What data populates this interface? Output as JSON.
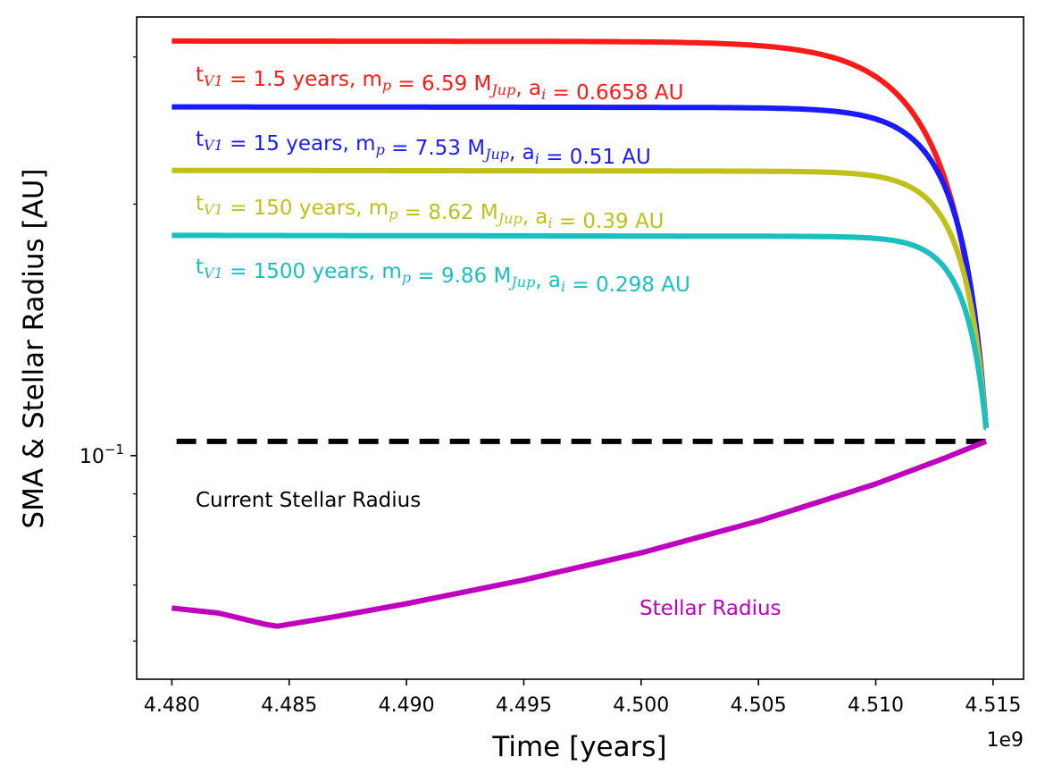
{
  "chart_data": {
    "type": "line",
    "xlabel": "Time [years]",
    "ylabel": "SMA & Stellar Radius [AU]",
    "x_offset_label": "1e9",
    "xlim": [
      4.4785,
      4.5163
    ],
    "ylim": [
      0.054,
      0.335
    ],
    "yscale": "log",
    "x_ticks": [
      4.48,
      4.485,
      4.49,
      4.495,
      4.5,
      4.505,
      4.51,
      4.515
    ],
    "x_tick_labels": [
      "4.480",
      "4.485",
      "4.490",
      "4.495",
      "4.500",
      "4.505",
      "4.510",
      "4.515"
    ],
    "y_major_tick": {
      "value": 0.1,
      "base": "10",
      "exponent": "−1"
    },
    "y_minor_ticks": [
      0.06,
      0.07,
      0.08,
      0.09,
      0.2,
      0.3
    ],
    "t_end": 4.5147,
    "series": [
      {
        "name": "tV1 = 1.5 years",
        "color": "#ff1a1a",
        "a_start": 0.3135,
        "a_end": 0.108,
        "tau": 0.0024,
        "flat": 0.0022,
        "label": {
          "t": "t",
          "tsub": "V1",
          "tval": " = 1.5 years, m",
          "msub": "p",
          "mval": " = 6.59 M",
          "jsub": "Jup",
          "aval": ", a",
          "asub": "i",
          "aend": " = 0.6658 AU"
        }
      },
      {
        "name": "tV1 = 15 years",
        "color": "#1a1aff",
        "a_start": 0.2615,
        "a_end": 0.108,
        "tau": 0.0016,
        "flat": 0.0038,
        "label": {
          "t": "t",
          "tsub": "V1",
          "tval": " = 15 years, m",
          "msub": "p",
          "mval": " = 7.53 M",
          "jsub": "Jup",
          "aval": ", a",
          "asub": "i",
          "aend": " = 0.51 AU"
        }
      },
      {
        "name": "tV1 = 150 years",
        "color": "#c0c01a",
        "a_start": 0.2195,
        "a_end": 0.108,
        "tau": 0.0013,
        "flat": 0.0055,
        "label": {
          "t": "t",
          "tsub": "V1",
          "tval": " = 150 years, m",
          "msub": "p",
          "mval": " = 8.62 M",
          "jsub": "Jup",
          "aval": ", a",
          "asub": "i",
          "aend": " = 0.39 AU"
        }
      },
      {
        "name": "tV1 = 1500 years",
        "color": "#1ac0c0",
        "a_start": 0.1835,
        "a_end": 0.108,
        "tau": 0.0011,
        "flat": 0.0075,
        "label": {
          "t": "t",
          "tsub": "V1",
          "tval": " = 1500 years, m",
          "msub": "p",
          "mval": " = 9.86 M",
          "jsub": "Jup",
          "aval": ", a",
          "asub": "i",
          "aend": " = 0.298 AU"
        }
      }
    ],
    "stellar_radius": {
      "name": "Stellar Radius",
      "color": "#bf00bf",
      "points": [
        [
          4.48,
          0.0657
        ],
        [
          4.482,
          0.0648
        ],
        [
          4.484,
          0.0628
        ],
        [
          4.4845,
          0.0625
        ],
        [
          4.487,
          0.0642
        ],
        [
          4.49,
          0.0665
        ],
        [
          4.495,
          0.071
        ],
        [
          4.5,
          0.0765
        ],
        [
          4.505,
          0.0835
        ],
        [
          4.51,
          0.0925
        ],
        [
          4.513,
          0.0995
        ],
        [
          4.5147,
          0.104
        ]
      ]
    },
    "current_stellar_radius": {
      "name": "Current Stellar Radius",
      "value": 0.104,
      "x_range": [
        4.4802,
        4.5147
      ],
      "color": "#000000"
    }
  }
}
